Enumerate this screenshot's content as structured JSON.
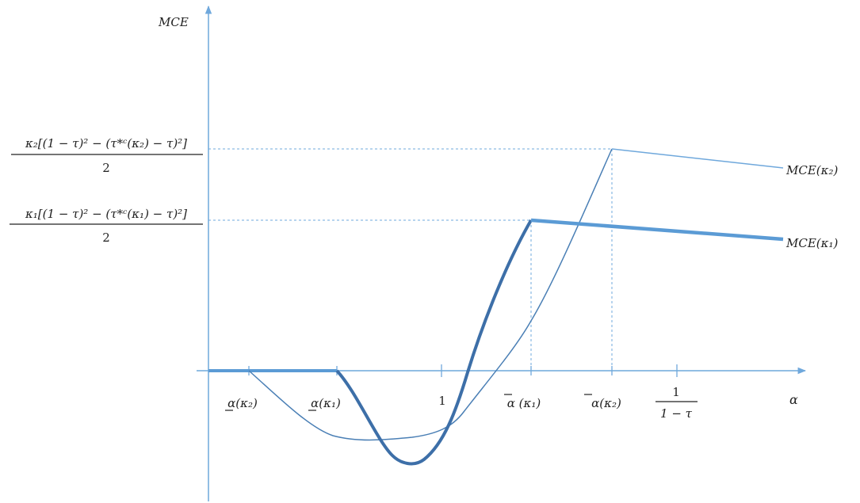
{
  "chart_data": {
    "type": "line",
    "title": "",
    "ylabel": "MCE",
    "xlabel": "α",
    "x_ticks": [
      {
        "id": "alpha_low_k2",
        "label": "α(κ₂)",
        "underline": true
      },
      {
        "id": "alpha_low_k1",
        "label": "α(κ₁)",
        "underline": true
      },
      {
        "id": "one",
        "label": "1"
      },
      {
        "id": "alpha_high_k1",
        "label": "α (κ₁)",
        "overline": true
      },
      {
        "id": "alpha_high_k2",
        "label": "α(κ₂)",
        "overline": true
      },
      {
        "id": "inv_one_minus_tau",
        "label_num": "1",
        "label_den": "1 − τ"
      }
    ],
    "y_ticks": [
      {
        "id": "peak_k2",
        "label_num": "κ₂[(1 − τ)² − (τ*ᶜ(κ₂) − τ)²]",
        "label_den": "2"
      },
      {
        "id": "peak_k1",
        "label_num": "κ₁[(1 − τ)² − (τ*ᶜ(κ₁) − τ)²]",
        "label_den": "2"
      }
    ],
    "series": [
      {
        "name": "MCE(κ₁)",
        "style": "thick"
      },
      {
        "name": "MCE(κ₂)",
        "style": "thin"
      }
    ],
    "colors": {
      "axis": "#6fa8dc",
      "curve": "#4a7fb5",
      "thick_curve": "#3d6fa8",
      "flat": "#5b9bd5",
      "guide": "#6fa8dc"
    }
  }
}
